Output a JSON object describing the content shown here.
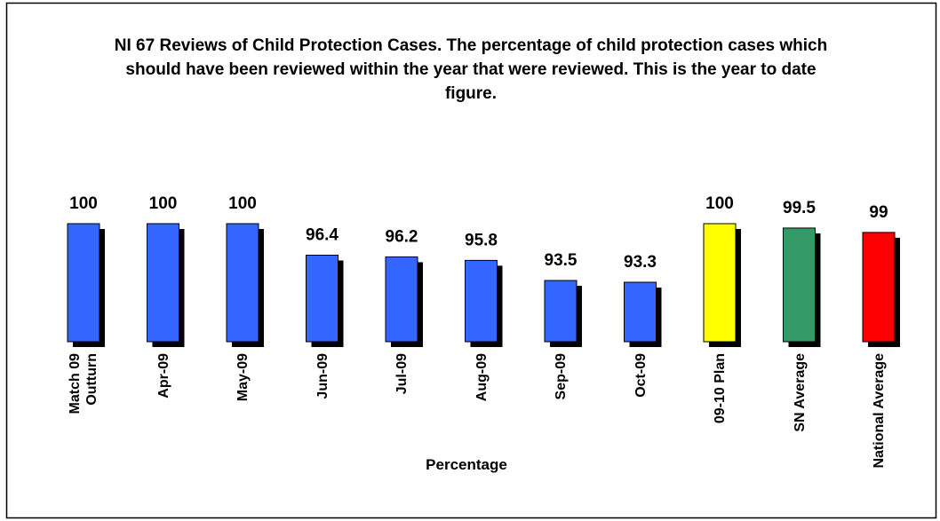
{
  "chart_data": {
    "type": "bar",
    "title": "NI 67 Reviews of Child Protection Cases. The percentage of child protection cases which should have been reviewed within the year that were reviewed. This is the year to date figure.",
    "x_label": "Percentage",
    "categories": [
      "Match 09 Outturn",
      "Apr-09",
      "May-09",
      "Jun-09",
      "Jul-09",
      "Aug-09",
      "Sep-09",
      "Oct-09",
      "09-10 Plan",
      "SN Average",
      "National Average"
    ],
    "values": [
      100,
      100,
      100,
      96.4,
      96.2,
      95.8,
      93.5,
      93.3,
      100,
      99.5,
      99
    ],
    "colors": [
      "#3366ff",
      "#3366ff",
      "#3366ff",
      "#3366ff",
      "#3366ff",
      "#3366ff",
      "#3366ff",
      "#3366ff",
      "#ffff00",
      "#339966",
      "#ff0000"
    ],
    "ylim": [
      86.5,
      100
    ]
  }
}
